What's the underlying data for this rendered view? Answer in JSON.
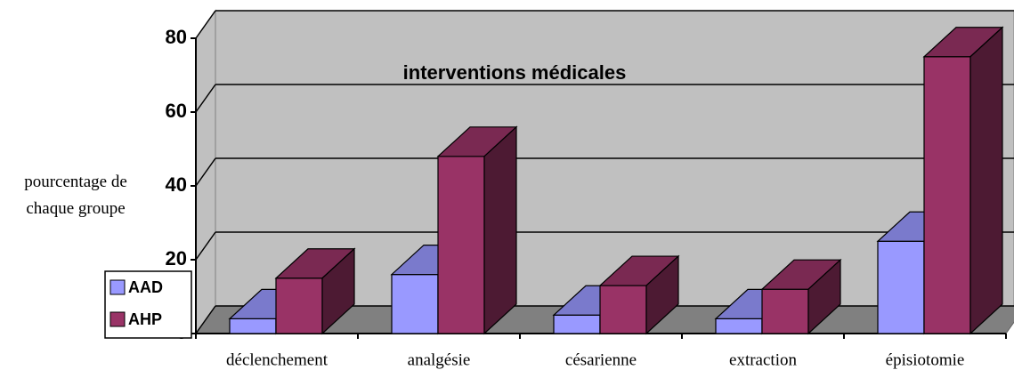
{
  "chart_data": {
    "type": "bar3d",
    "title": "interventions médicales",
    "y_label": "pourcentage de chaque groupe",
    "categories": [
      "déclenchement",
      "analgésie",
      "césarienne",
      "extraction",
      "épisiotomie"
    ],
    "series": [
      {
        "name": "AAD",
        "color": "#9999ff",
        "values": [
          4,
          16,
          5,
          4,
          25
        ]
      },
      {
        "name": "AHP",
        "color": "#993366",
        "values": [
          15,
          48,
          13,
          12,
          75
        ]
      }
    ],
    "ylim": [
      0,
      80
    ],
    "yticks": [
      0,
      20,
      40,
      60,
      80
    ],
    "grid": true,
    "legend": "left"
  }
}
